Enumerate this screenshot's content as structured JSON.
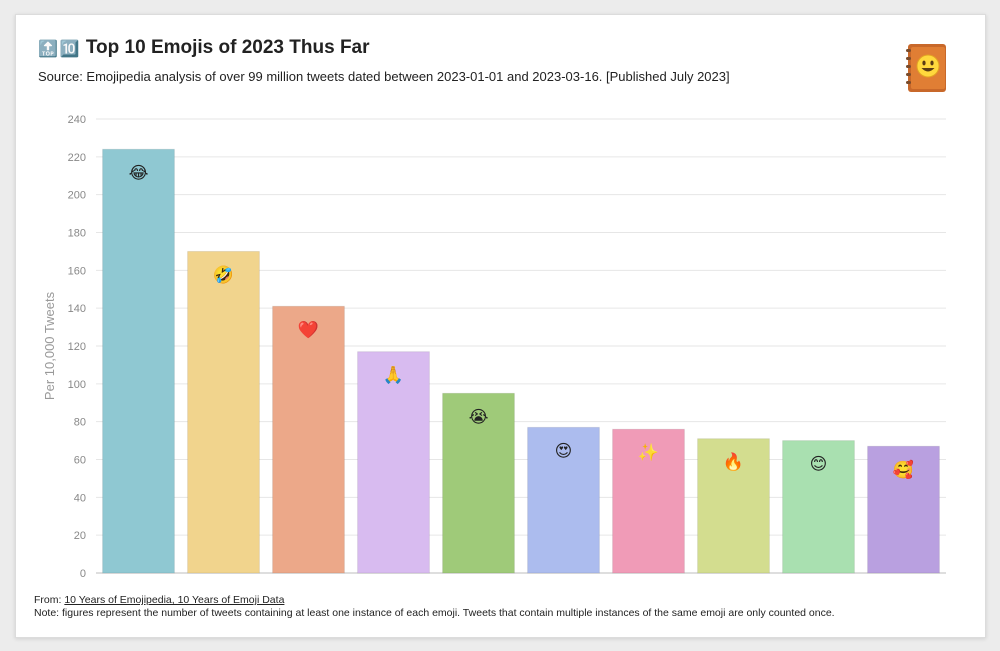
{
  "header": {
    "title_emojis": [
      "🔝",
      "🔟"
    ],
    "title": "Top 10 Emojis of 2023 Thus Far",
    "subtitle": "Source: Emojipedia analysis of over 99 million tweets dated between 2023-01-01 and 2023-03-16. [Published July 2023]"
  },
  "logo_icon": "emojipedia-book-icon",
  "footer": {
    "from_label": "From: ",
    "link_text": "10 Years of Emojipedia, 10 Years of Emoji Data",
    "note": "Note: figures represent the number of tweets containing at least one instance of each emoji. Tweets that contain multiple instances of the same emoji are only counted once."
  },
  "chart_data": {
    "type": "bar",
    "title": "Top 10 Emojis of 2023 Thus Far",
    "xlabel": "",
    "ylabel": "Per 10,000 Tweets",
    "ylim": [
      0,
      240
    ],
    "yticks": [
      0,
      20,
      40,
      60,
      80,
      100,
      120,
      140,
      160,
      180,
      200,
      220,
      240
    ],
    "grid": true,
    "categories": [
      "😂",
      "🤣",
      "❤️",
      "🙏",
      "😭",
      "😍",
      "✨",
      "🔥",
      "😊",
      "🥰"
    ],
    "values": [
      224,
      170,
      141,
      117,
      95,
      77,
      76,
      71,
      70,
      67
    ],
    "colors": [
      "#8fc8d2",
      "#f1d48d",
      "#eca889",
      "#d8bbf0",
      "#9fca79",
      "#acbcee",
      "#f09bb7",
      "#d3dd8f",
      "#a9e0b0",
      "#b9a0e0"
    ]
  }
}
